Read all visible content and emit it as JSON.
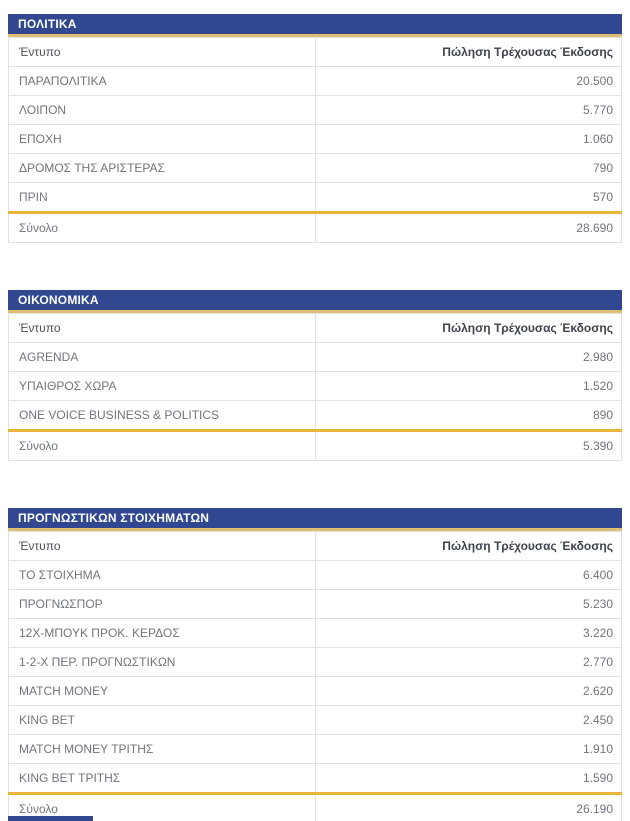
{
  "columns": {
    "name": "Έντυπο",
    "sales": "Πώληση Τρέχουσας Έκδοσης"
  },
  "total_label": "Σύνολο",
  "sections": [
    {
      "title": "ΠΟΛΙΤΙΚΑ",
      "rows": [
        {
          "name": "ΠΑΡΑΠΟΛΙΤΙΚΑ",
          "sales": "20.500"
        },
        {
          "name": "ΛΟΙΠΟΝ",
          "sales": "5.770"
        },
        {
          "name": "ΕΠΟΧΗ",
          "sales": "1.060"
        },
        {
          "name": "ΔΡΟΜΟΣ ΤΗΣ ΑΡΙΣΤΕΡΑΣ",
          "sales": "790"
        },
        {
          "name": "ΠΡΙΝ",
          "sales": "570"
        }
      ],
      "total": "28.690"
    },
    {
      "title": "ΟΙΚΟΝΟΜΙΚΑ",
      "rows": [
        {
          "name": "AGRENDA",
          "sales": "2.980"
        },
        {
          "name": "ΥΠΑΙΘΡΟΣ ΧΩΡΑ",
          "sales": "1.520"
        },
        {
          "name": "ONE VOICE BUSINESS & POLITICS",
          "sales": "890"
        }
      ],
      "total": "5.390"
    },
    {
      "title": "ΠΡΟΓΝΩΣΤΙΚΩΝ ΣΤΟΙΧΗΜΑΤΩΝ",
      "rows": [
        {
          "name": "ΤΟ ΣΤΟΙΧΗΜΑ",
          "sales": "6.400"
        },
        {
          "name": "ΠΡΟΓΝΩΣΠΟΡ",
          "sales": "5.230"
        },
        {
          "name": "12Χ-ΜΠΟΥΚ ΠΡΟΚ. ΚΕΡΔΟΣ",
          "sales": "3.220"
        },
        {
          "name": "1-2-Χ ΠΕΡ. ΠΡΟΓΝΩΣΤΙΚΩΝ",
          "sales": "2.770"
        },
        {
          "name": "MATCH MONEY",
          "sales": "2.620"
        },
        {
          "name": "KING BET",
          "sales": "2.450"
        },
        {
          "name": "MATCH MONEY ΤΡΙΤΗΣ",
          "sales": "1.910"
        },
        {
          "name": "KING BET ΤΡΙΤΗΣ",
          "sales": "1.590"
        }
      ],
      "total": "26.190"
    }
  ],
  "colors": {
    "category_bar": "#31478f",
    "category_bar_underline": "#ddbf72",
    "total_row_top_border": "#e9b53a",
    "grid_border": "#e2e2e2",
    "cell_text": "#70757e"
  }
}
